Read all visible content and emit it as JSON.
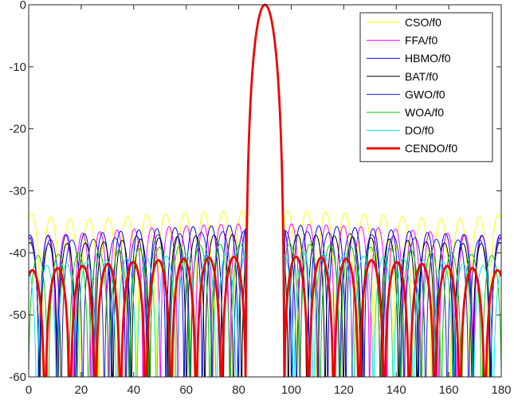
{
  "chart_data": {
    "type": "line",
    "title": "",
    "xlabel": "",
    "ylabel": "",
    "xlim": [
      0,
      180
    ],
    "ylim": [
      -60,
      0
    ],
    "xticks": [
      0,
      20,
      40,
      60,
      80,
      100,
      120,
      140,
      160,
      180
    ],
    "yticks": [
      0,
      -10,
      -20,
      -30,
      -40,
      -50,
      -60
    ],
    "grid": false,
    "legend_position": "top-right",
    "mainlobe": {
      "center": 90,
      "null_halfwidth": 7.5
    },
    "series": [
      {
        "name": "CSO/f0",
        "color": "#ffff00",
        "width": 1.0,
        "sll": -33.2,
        "null_spacing": 7.3,
        "phase": 0.35,
        "edge_rise": 6,
        "notch_max": -50
      },
      {
        "name": "FFA/f0",
        "color": "#ff00ff",
        "width": 1.0,
        "sll": -35.3,
        "null_spacing": 6.6,
        "phase": 0.1,
        "edge_rise": 0,
        "notch_max": -49
      },
      {
        "name": "HBMO/f0",
        "color": "#0000ff",
        "width": 1.0,
        "sll": -35.5,
        "null_spacing": 6.9,
        "phase": 0.62,
        "edge_rise": 2,
        "notch_max": -57
      },
      {
        "name": "BAT/f0",
        "color": "#000000",
        "width": 1.0,
        "sll": -37.0,
        "null_spacing": 7.0,
        "phase": 0.8,
        "edge_rise": 3,
        "notch_max": -45
      },
      {
        "name": "GWO/f0",
        "color": "#2020c0",
        "width": 1.0,
        "sll": -36.5,
        "null_spacing": 8.2,
        "phase": 0.45,
        "edge_rise": 4,
        "notch_max": -54
      },
      {
        "name": "WOA/f0",
        "color": "#00cc00",
        "width": 1.0,
        "sll": -38.5,
        "null_spacing": 7.7,
        "phase": 0.25,
        "edge_rise": 1,
        "notch_max": -60
      },
      {
        "name": "DO/f0",
        "color": "#00e5e5",
        "width": 1.0,
        "sll": -40.0,
        "null_spacing": 7.6,
        "phase": 0.55,
        "edge_rise": 0,
        "notch_max": -60
      },
      {
        "name": "CENDO/f0",
        "color": "#ee0000",
        "width": 2.8,
        "sll": -40.6,
        "null_spacing": 9.6,
        "phase": 0.05,
        "edge_rise": 0,
        "notch_max": -60
      }
    ]
  }
}
